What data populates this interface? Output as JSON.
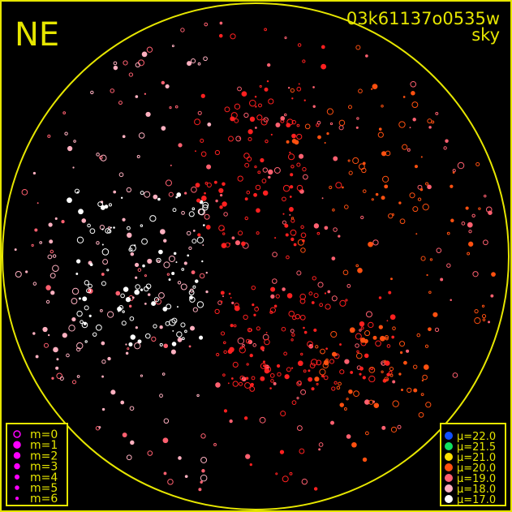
{
  "chart_data": {
    "type": "scatter",
    "title": "03k61137o0535w",
    "subtitle": "sky",
    "orientation_label": "NE",
    "frame_color": "#e6e600",
    "legend_magnitude": {
      "placement": "bottom-left",
      "entries": [
        "m=0",
        "m=1",
        "m=2",
        "m=3",
        "m=4",
        "m=5",
        "m=6"
      ],
      "color": "#ff00ff"
    },
    "legend_mu": {
      "placement": "bottom-right",
      "entries": [
        {
          "label": "μ=22.0",
          "color": "#1050ff"
        },
        {
          "label": "μ=21.5",
          "color": "#10e060"
        },
        {
          "label": "μ=21.0",
          "color": "#ffe000"
        },
        {
          "label": "μ=20.0",
          "color": "#ff5010"
        },
        {
          "label": "μ=19.0",
          "color": "#ff6070"
        },
        {
          "label": "μ=18.0",
          "color": "#ffb0c0"
        },
        {
          "label": "μ=17.0",
          "color": "#ffffff"
        }
      ]
    }
  }
}
